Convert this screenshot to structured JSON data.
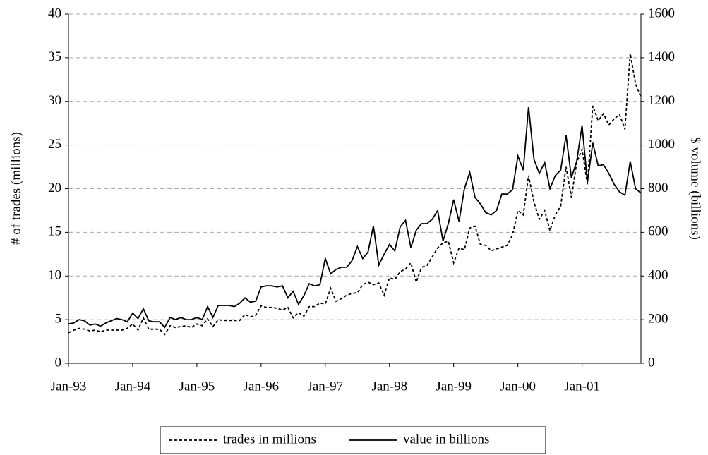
{
  "chart_data": {
    "type": "line",
    "y_label": "# of trades (millions)",
    "y2_label": "$ volume (billions)",
    "categories": [
      "Jan-93",
      null,
      null,
      null,
      null,
      null,
      null,
      null,
      null,
      null,
      null,
      null,
      "Jan-94",
      null,
      null,
      null,
      null,
      null,
      null,
      null,
      null,
      null,
      null,
      null,
      "Jan-95",
      null,
      null,
      null,
      null,
      null,
      null,
      null,
      null,
      null,
      null,
      null,
      "Jan-96",
      null,
      null,
      null,
      null,
      null,
      null,
      null,
      null,
      null,
      null,
      null,
      "Jan-97",
      null,
      null,
      null,
      null,
      null,
      null,
      null,
      null,
      null,
      null,
      null,
      "Jan-98",
      null,
      null,
      null,
      null,
      null,
      null,
      null,
      null,
      null,
      null,
      null,
      "Jan-99",
      null,
      null,
      null,
      null,
      null,
      null,
      null,
      null,
      null,
      null,
      null,
      "Jan-00",
      null,
      null,
      null,
      null,
      null,
      null,
      null,
      null,
      null,
      null,
      null,
      "Jan-01",
      null,
      null,
      null,
      null,
      null,
      null,
      null,
      null,
      null,
      null,
      null
    ],
    "series": [
      {
        "name": "trades in millions",
        "color": "#000000",
        "line_style": "dashed",
        "axis": "y",
        "values": [
          3.5,
          3.8,
          4.0,
          3.9,
          3.7,
          3.8,
          3.6,
          3.8,
          3.8,
          3.8,
          3.8,
          4.0,
          4.5,
          3.8,
          5.2,
          3.9,
          3.9,
          3.9,
          3.3,
          4.3,
          4.1,
          4.2,
          4.3,
          4.1,
          4.5,
          4.3,
          5.1,
          4.2,
          5.0,
          4.9,
          4.9,
          4.9,
          4.9,
          5.6,
          5.3,
          5.5,
          6.6,
          6.4,
          6.4,
          6.3,
          6.1,
          6.4,
          5.2,
          5.8,
          5.4,
          6.5,
          6.5,
          6.9,
          6.8,
          8.6,
          7.1,
          7.4,
          7.8,
          8.0,
          8.1,
          9.0,
          9.3,
          9.0,
          9.2,
          7.8,
          9.8,
          9.6,
          10.5,
          10.8,
          11.5,
          9.3,
          11.0,
          11.2,
          12.2,
          13.2,
          13.8,
          14.0,
          11.5,
          13.2,
          13.0,
          15.5,
          15.7,
          13.6,
          13.5,
          12.9,
          13.1,
          13.3,
          13.5,
          14.7,
          17.5,
          17.0,
          21.5,
          18.5,
          16.5,
          17.5,
          15.2,
          17.0,
          18.0,
          22.5,
          19.0,
          23.0,
          24.5,
          20.5,
          29.5,
          27.8,
          28.6,
          27.3,
          28.0,
          28.5,
          26.8,
          35.5,
          32.0,
          30.5
        ]
      },
      {
        "name": "value in billions",
        "color": "#000000",
        "line_style": "solid",
        "axis": "y2",
        "values": [
          180,
          185,
          200,
          195,
          175,
          180,
          170,
          185,
          195,
          205,
          200,
          190,
          230,
          205,
          250,
          195,
          190,
          190,
          165,
          210,
          200,
          210,
          200,
          200,
          210,
          200,
          260,
          210,
          265,
          265,
          265,
          260,
          275,
          300,
          280,
          285,
          350,
          355,
          355,
          350,
          355,
          300,
          330,
          270,
          310,
          365,
          355,
          360,
          480,
          410,
          430,
          440,
          440,
          470,
          535,
          480,
          510,
          630,
          450,
          500,
          545,
          515,
          625,
          655,
          530,
          610,
          640,
          640,
          660,
          700,
          560,
          640,
          750,
          650,
          800,
          875,
          760,
          730,
          690,
          680,
          700,
          775,
          775,
          795,
          950,
          885,
          1175,
          935,
          870,
          920,
          800,
          860,
          885,
          1045,
          850,
          925,
          1090,
          830,
          1010,
          905,
          910,
          870,
          820,
          785,
          770,
          925,
          800,
          780
        ]
      }
    ],
    "ylim": [
      0,
      40
    ],
    "yticks": [
      0,
      5,
      10,
      15,
      20,
      25,
      30,
      35,
      40
    ],
    "y2lim": [
      0,
      1600
    ],
    "y2ticks": [
      0,
      200,
      400,
      600,
      800,
      1000,
      1200,
      1400,
      1600
    ],
    "grid": true,
    "legend": "bottom"
  }
}
